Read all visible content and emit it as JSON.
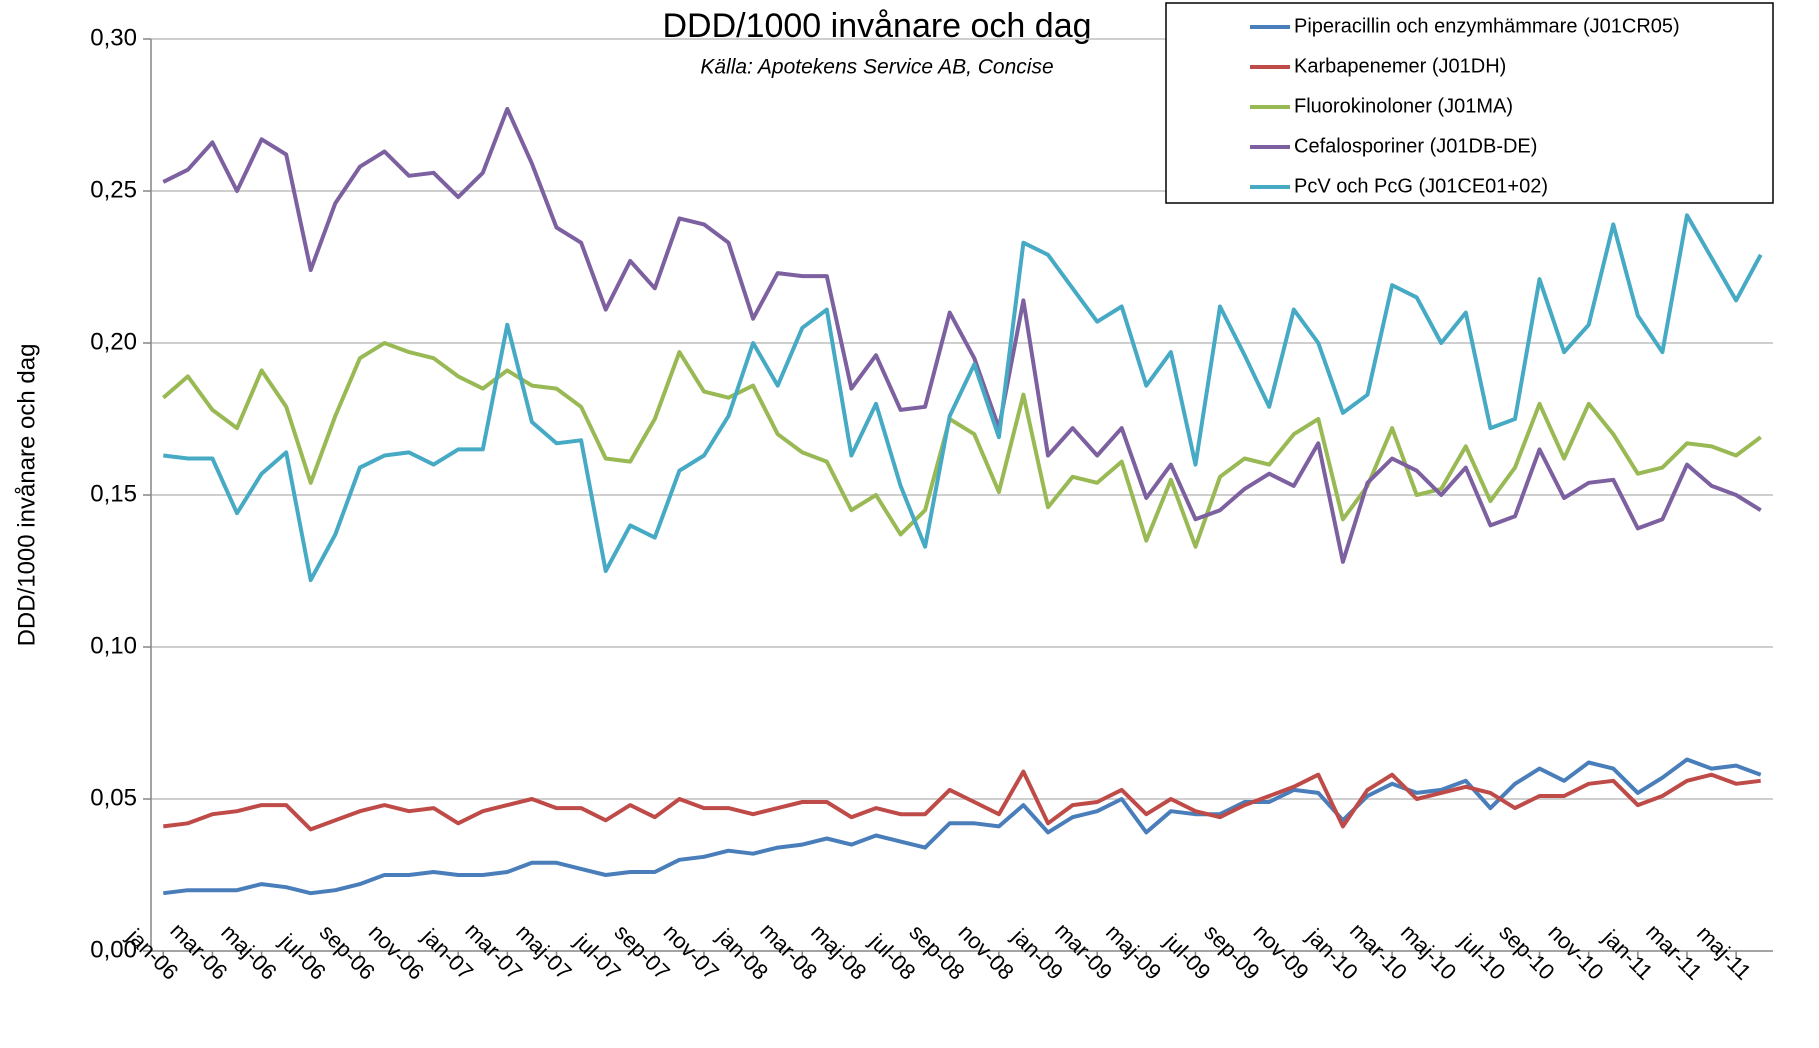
{
  "chart_data": {
    "type": "line",
    "title": "DDD/1000 invånare och dag",
    "subtitle": "Källa: Apotekens Service AB, Concise",
    "y_label": "DDD/1000 invånare och dag",
    "categories": [
      "jan-06",
      null,
      "mar-06",
      null,
      "maj-06",
      null,
      "jul-06",
      null,
      "sep-06",
      null,
      "nov-06",
      null,
      "jan-07",
      null,
      "mar-07",
      null,
      "maj-07",
      null,
      "jul-07",
      null,
      "sep-07",
      null,
      "nov-07",
      null,
      "jan-08",
      null,
      "mar-08",
      null,
      "maj-08",
      null,
      "jul-08",
      null,
      "sep-08",
      null,
      "nov-08",
      null,
      "jan-09",
      null,
      "mar-09",
      null,
      "maj-09",
      null,
      "jul-09",
      null,
      "sep-09",
      null,
      "nov-09",
      null,
      "jan-10",
      null,
      "mar-10",
      null,
      "maj-10",
      null,
      "jul-10",
      null,
      "sep-10",
      null,
      "nov-10",
      null,
      "jan-11",
      null,
      "mar-11",
      null,
      "maj-11",
      null
    ],
    "series": [
      {
        "name": "Piperacillin och enzymhämmare (J01CR05)",
        "color": "#4a7ebb",
        "values": [
          0.019,
          0.02,
          0.02,
          0.02,
          0.022,
          0.021,
          0.019,
          0.02,
          0.022,
          0.025,
          0.025,
          0.026,
          0.025,
          0.025,
          0.026,
          0.029,
          0.029,
          0.027,
          0.025,
          0.026,
          0.026,
          0.03,
          0.031,
          0.033,
          0.032,
          0.034,
          0.035,
          0.037,
          0.035,
          0.038,
          0.036,
          0.034,
          0.042,
          0.042,
          0.041,
          0.048,
          0.039,
          0.044,
          0.046,
          0.05,
          0.039,
          0.046,
          0.045,
          0.045,
          0.049,
          0.049,
          0.053,
          0.052,
          0.043,
          0.051,
          0.055,
          0.052,
          0.053,
          0.056,
          0.047,
          0.055,
          0.06,
          0.056,
          0.062,
          0.06,
          0.052,
          0.057,
          0.063,
          0.06,
          0.061,
          0.058
        ]
      },
      {
        "name": "Karbapenemer (J01DH)",
        "color": "#be4b48",
        "values": [
          0.041,
          0.042,
          0.045,
          0.046,
          0.048,
          0.048,
          0.04,
          0.043,
          0.046,
          0.048,
          0.046,
          0.047,
          0.042,
          0.046,
          0.048,
          0.05,
          0.047,
          0.047,
          0.043,
          0.048,
          0.044,
          0.05,
          0.047,
          0.047,
          0.045,
          0.047,
          0.049,
          0.049,
          0.044,
          0.047,
          0.045,
          0.045,
          0.053,
          0.049,
          0.045,
          0.059,
          0.042,
          0.048,
          0.049,
          0.053,
          0.045,
          0.05,
          0.046,
          0.044,
          0.048,
          0.051,
          0.054,
          0.058,
          0.041,
          0.053,
          0.058,
          0.05,
          0.052,
          0.054,
          0.052,
          0.047,
          0.051,
          0.051,
          0.055,
          0.056,
          0.048,
          0.051,
          0.056,
          0.058,
          0.055,
          0.056
        ]
      },
      {
        "name": "Fluorokinoloner (J01MA)",
        "color": "#98b954",
        "values": [
          0.182,
          0.189,
          0.178,
          0.172,
          0.191,
          0.179,
          0.154,
          0.176,
          0.195,
          0.2,
          0.197,
          0.195,
          0.189,
          0.185,
          0.191,
          0.186,
          0.185,
          0.179,
          0.162,
          0.161,
          0.175,
          0.197,
          0.184,
          0.182,
          0.186,
          0.17,
          0.164,
          0.161,
          0.145,
          0.15,
          0.137,
          0.145,
          0.175,
          0.17,
          0.151,
          0.183,
          0.146,
          0.156,
          0.154,
          0.161,
          0.135,
          0.155,
          0.133,
          0.156,
          0.162,
          0.16,
          0.17,
          0.175,
          0.142,
          0.153,
          0.172,
          0.15,
          0.152,
          0.166,
          0.148,
          0.159,
          0.18,
          0.162,
          0.18,
          0.17,
          0.157,
          0.159,
          0.167,
          0.166,
          0.163,
          0.169
        ]
      },
      {
        "name": "Cefalosporiner (J01DB-DE)",
        "color": "#7d60a0",
        "values": [
          0.253,
          0.257,
          0.266,
          0.25,
          0.267,
          0.262,
          0.224,
          0.246,
          0.258,
          0.263,
          0.255,
          0.256,
          0.248,
          0.256,
          0.277,
          0.259,
          0.238,
          0.233,
          0.211,
          0.227,
          0.218,
          0.241,
          0.239,
          0.233,
          0.208,
          0.223,
          0.222,
          0.222,
          0.185,
          0.196,
          0.178,
          0.179,
          0.21,
          0.195,
          0.172,
          0.214,
          0.163,
          0.172,
          0.163,
          0.172,
          0.149,
          0.16,
          0.142,
          0.145,
          0.152,
          0.157,
          0.153,
          0.167,
          0.128,
          0.154,
          0.162,
          0.158,
          0.15,
          0.159,
          0.14,
          0.143,
          0.165,
          0.149,
          0.154,
          0.155,
          0.139,
          0.142,
          0.16,
          0.153,
          0.15,
          0.145
        ]
      },
      {
        "name": "PcV och PcG (J01CE01+02)",
        "color": "#46aac5",
        "values": [
          0.163,
          0.162,
          0.162,
          0.144,
          0.157,
          0.164,
          0.122,
          0.137,
          0.159,
          0.163,
          0.164,
          0.16,
          0.165,
          0.165,
          0.206,
          0.174,
          0.167,
          0.168,
          0.125,
          0.14,
          0.136,
          0.158,
          0.163,
          0.176,
          0.2,
          0.186,
          0.205,
          0.211,
          0.163,
          0.18,
          0.153,
          0.133,
          0.176,
          0.193,
          0.169,
          0.233,
          0.229,
          0.218,
          0.207,
          0.212,
          0.186,
          0.197,
          0.16,
          0.212,
          0.196,
          0.179,
          0.211,
          0.2,
          0.177,
          0.183,
          0.219,
          0.215,
          0.2,
          0.21,
          0.172,
          0.175,
          0.221,
          0.197,
          0.206,
          0.239,
          0.209,
          0.197,
          0.242,
          0.228,
          0.214,
          0.229
        ]
      }
    ],
    "ylim": [
      0,
      0.3
    ],
    "yticks": [
      {
        "value": 0,
        "label": "0,00"
      },
      {
        "value": 0.05,
        "label": "0,05"
      },
      {
        "value": 0.1,
        "label": "0,10"
      },
      {
        "value": 0.15,
        "label": "0,15"
      },
      {
        "value": 0.2,
        "label": "0,20"
      },
      {
        "value": 0.25,
        "label": "0,25"
      },
      {
        "value": 0.3,
        "label": "0,30"
      }
    ],
    "grid": true,
    "legend": "top-right"
  }
}
